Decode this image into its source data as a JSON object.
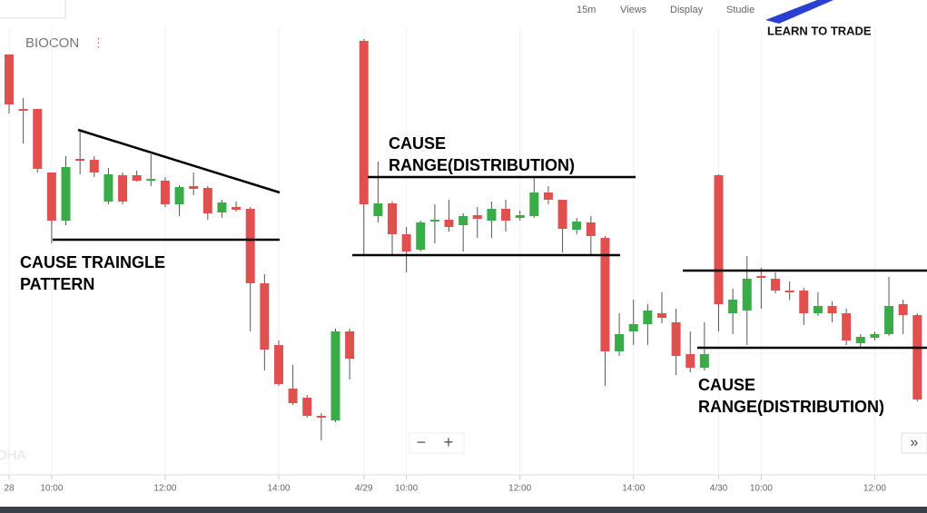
{
  "chart_data": {
    "type": "candlestick",
    "title": "BIOCON",
    "categories": [
      "28",
      null,
      null,
      "10:00",
      null,
      null,
      null,
      null,
      null,
      null,
      null,
      "12:00",
      null,
      null,
      null,
      null,
      null,
      null,
      null,
      "14:00",
      null,
      null,
      null,
      null,
      null,
      "4/29",
      null,
      null,
      "10:00",
      null,
      null,
      null,
      null,
      null,
      null,
      null,
      "12:00",
      null,
      null,
      null,
      null,
      null,
      null,
      null,
      "14:00",
      null,
      null,
      null,
      null,
      null,
      "4/30",
      null,
      null,
      "10:00",
      null,
      null,
      null,
      null,
      null,
      null,
      null,
      "12:00",
      null,
      null,
      null
    ],
    "open": [
      460,
      400,
      400,
      330,
      277,
      345,
      344,
      298,
      327,
      327,
      321,
      321,
      295,
      315,
      313,
      286,
      292,
      290,
      208,
      140,
      92,
      82,
      62,
      57,
      155,
      475,
      282,
      296,
      262,
      245,
      276,
      278,
      272,
      283,
      277,
      290,
      280,
      282,
      308,
      300,
      267,
      275,
      258,
      133,
      155,
      163,
      175,
      165,
      130,
      115,
      327,
      175,
      178,
      216,
      213,
      200,
      200,
      175,
      183,
      175,
      142,
      148,
      152,
      185,
      173
    ],
    "high": [
      460,
      412,
      400,
      330,
      348,
      377,
      348,
      335,
      330,
      332,
      350,
      325,
      316,
      330,
      315,
      300,
      298,
      292,
      218,
      145,
      118,
      85,
      65,
      158,
      158,
      477,
      342,
      298,
      270,
      277,
      295,
      300,
      285,
      292,
      298,
      300,
      288,
      325,
      315,
      300,
      280,
      282,
      260,
      175,
      190,
      185,
      198,
      180,
      155,
      165,
      328,
      202,
      238,
      225,
      220,
      210,
      203,
      198,
      188,
      180,
      152,
      155,
      215,
      190,
      175
    ],
    "low": [
      395,
      362,
      330,
      252,
      272,
      328,
      325,
      295,
      295,
      320,
      315,
      292,
      282,
      305,
      278,
      280,
      287,
      155,
      112,
      95,
      74,
      60,
      35,
      55,
      102,
      240,
      275,
      240,
      220,
      243,
      252,
      265,
      243,
      258,
      258,
      265,
      277,
      280,
      295,
      242,
      262,
      240,
      95,
      128,
      140,
      140,
      164,
      107,
      110,
      112,
      155,
      152,
      140,
      180,
      197,
      190,
      162,
      172,
      165,
      140,
      138,
      145,
      150,
      152,
      78
    ],
    "close": [
      405,
      398,
      334,
      277,
      336,
      343,
      330,
      328,
      298,
      321,
      323,
      295,
      314,
      312,
      285,
      297,
      289,
      208,
      135,
      97,
      76,
      62,
      60,
      155,
      125,
      295,
      296,
      262,
      243,
      275,
      278,
      270,
      282,
      279,
      290,
      277,
      283,
      308,
      300,
      268,
      276,
      260,
      133,
      152,
      163,
      178,
      170,
      128,
      115,
      130,
      185,
      190,
      213,
      214,
      200,
      198,
      175,
      183,
      175,
      145,
      149,
      152,
      183,
      173,
      80
    ],
    "up_color": "#3aab47",
    "down_color": "#e0504f",
    "ylim": [
      0,
      490
    ],
    "annotations": [
      {
        "lines": [
          "CAUSE TRAINGLE",
          "PATTERN"
        ]
      },
      {
        "lines": [
          "CAUSE",
          "RANGE(DISTRIBUTION)"
        ]
      },
      {
        "lines": [
          "CAUSE",
          "RANGE(DISTRIBUTION)"
        ]
      }
    ]
  },
  "ui": {
    "interval": "15m",
    "views": "Views",
    "display": "Display",
    "studies": "Studie",
    "brand": "LEARN TO TRADE",
    "watermark": "OHA",
    "zoom_out": "−",
    "zoom_in": "+",
    "scroll": "»"
  }
}
